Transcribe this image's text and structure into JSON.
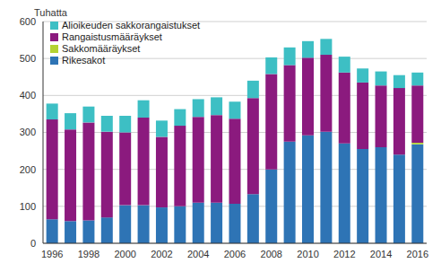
{
  "chart_data": {
    "type": "bar",
    "stacked": true,
    "grid": true,
    "legend": "upper left",
    "y_label": "Tuhatta",
    "categories": [
      "1996",
      null,
      "1998",
      null,
      "2000",
      null,
      "2002",
      null,
      "2004",
      null,
      "2006",
      null,
      "2008",
      null,
      "2010",
      null,
      "2012",
      null,
      "2014",
      null,
      "2016"
    ],
    "ylim": [
      0,
      600
    ],
    "yticks": [
      0,
      100,
      200,
      300,
      400,
      500,
      600
    ],
    "series": [
      {
        "name": "Rikesakot",
        "color": "#2e74b5",
        "values": [
          65,
          60,
          62,
          70,
          103,
          103,
          97,
          100,
          110,
          110,
          107,
          133,
          200,
          275,
          292,
          302,
          270,
          255,
          260,
          240,
          268
        ]
      },
      {
        "name": "Sakkomääräykset",
        "color": "#b4d232",
        "values": [
          null,
          null,
          null,
          null,
          null,
          null,
          null,
          null,
          null,
          null,
          null,
          null,
          null,
          null,
          null,
          null,
          null,
          null,
          null,
          null,
          4
        ]
      },
      {
        "name": "Rangaistusmääräykset",
        "color": "#8b1a7e",
        "values": [
          270,
          248,
          265,
          232,
          197,
          237,
          191,
          218,
          232,
          237,
          230,
          260,
          258,
          207,
          210,
          208,
          192,
          180,
          167,
          180,
          155
        ]
      },
      {
        "name": "Alioikeuden sakkorangaistukset",
        "color": "#3dbfc4",
        "values": [
          43,
          44,
          43,
          43,
          45,
          47,
          44,
          45,
          48,
          48,
          46,
          47,
          45,
          48,
          45,
          43,
          43,
          38,
          38,
          35,
          35
        ]
      }
    ]
  }
}
